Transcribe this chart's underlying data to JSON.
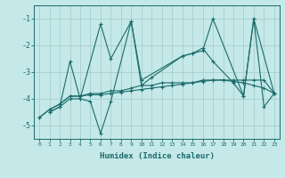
{
  "xlabel": "Humidex (Indice chaleur)",
  "background_color": "#c5e8e8",
  "grid_color": "#a8d0d0",
  "line_color": "#1a6b6b",
  "ylim": [
    -5.5,
    -0.5
  ],
  "xlim": [
    -0.5,
    23.5
  ],
  "yticks": [
    -5,
    -4,
    -3,
    -2,
    -1
  ],
  "xticks": [
    0,
    1,
    2,
    3,
    4,
    5,
    6,
    7,
    8,
    9,
    10,
    11,
    12,
    13,
    14,
    15,
    16,
    17,
    18,
    19,
    20,
    21,
    22,
    23
  ],
  "series_x": [
    [
      1,
      2,
      3,
      4,
      6,
      7,
      9,
      10,
      14,
      15,
      16,
      17,
      20,
      21,
      23
    ],
    [
      1,
      2,
      3,
      4,
      5,
      6,
      7,
      9,
      10,
      11,
      14,
      15,
      16,
      17,
      19,
      20,
      21,
      22,
      23
    ],
    [
      0,
      1,
      2,
      3,
      4,
      5,
      6,
      7,
      8,
      9,
      10,
      11,
      12,
      13,
      14,
      15,
      16,
      17,
      18,
      19,
      20,
      21,
      22,
      23
    ],
    [
      0,
      1,
      2,
      3,
      4,
      5,
      6,
      7,
      8,
      9,
      10,
      11,
      12,
      13,
      14,
      15,
      16,
      17,
      18,
      19,
      20,
      21,
      22,
      23
    ]
  ],
  "series_y": [
    [
      -4.5,
      -4.3,
      -2.6,
      -4.0,
      -1.2,
      -2.5,
      -1.1,
      -3.3,
      -2.4,
      -2.3,
      -2.2,
      -1.0,
      -3.9,
      -1.0,
      -3.8
    ],
    [
      -4.5,
      -4.3,
      -4.0,
      -4.0,
      -4.1,
      -5.3,
      -4.1,
      -1.1,
      -3.5,
      -3.2,
      -2.4,
      -2.3,
      -2.1,
      -2.6,
      -3.4,
      -3.9,
      -1.0,
      -4.3,
      -3.8
    ],
    [
      -4.7,
      -4.4,
      -4.2,
      -3.9,
      -3.9,
      -3.8,
      -3.8,
      -3.7,
      -3.7,
      -3.6,
      -3.5,
      -3.5,
      -3.4,
      -3.4,
      -3.4,
      -3.4,
      -3.3,
      -3.3,
      -3.3,
      -3.3,
      -3.3,
      -3.3,
      -3.3,
      -3.8
    ],
    [
      -4.7,
      -4.4,
      -4.2,
      -3.9,
      -3.9,
      -3.85,
      -3.85,
      -3.8,
      -3.75,
      -3.7,
      -3.65,
      -3.6,
      -3.55,
      -3.5,
      -3.45,
      -3.4,
      -3.35,
      -3.3,
      -3.3,
      -3.35,
      -3.4,
      -3.5,
      -3.6,
      -3.8
    ]
  ]
}
